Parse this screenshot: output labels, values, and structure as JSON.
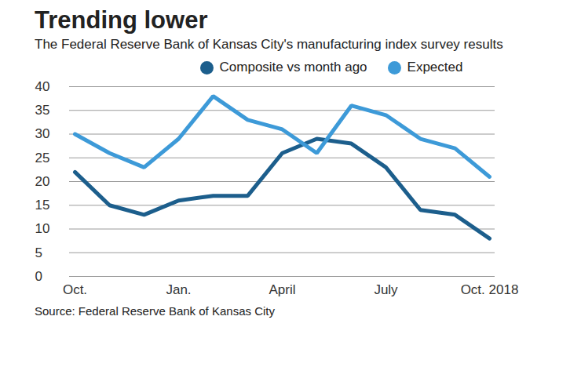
{
  "chart_data": {
    "type": "line",
    "title": "Trending lower",
    "subtitle": "The Federal Reserve Bank of Kansas City's manufacturing index survey results",
    "source": "Source: Federal Reserve Bank of Kansas City",
    "categories": [
      "Oct.",
      null,
      null,
      "Jan.",
      null,
      null,
      "April",
      null,
      null,
      "July",
      null,
      null,
      "Oct. 2018"
    ],
    "series": [
      {
        "name": "Composite vs month ago",
        "color": "#1c5e8c",
        "values": [
          22,
          15,
          13,
          16,
          17,
          17,
          26,
          29,
          28,
          23,
          14,
          13,
          8
        ]
      },
      {
        "name": "Expected",
        "color": "#3d9ad8",
        "values": [
          30,
          26,
          23,
          29,
          38,
          33,
          31,
          26,
          36,
          34,
          29,
          27,
          21
        ]
      }
    ],
    "ylim": [
      0,
      40
    ],
    "yticks": [
      0,
      5,
      10,
      15,
      20,
      25,
      30,
      35,
      40
    ],
    "grid": true,
    "legend": "top"
  }
}
